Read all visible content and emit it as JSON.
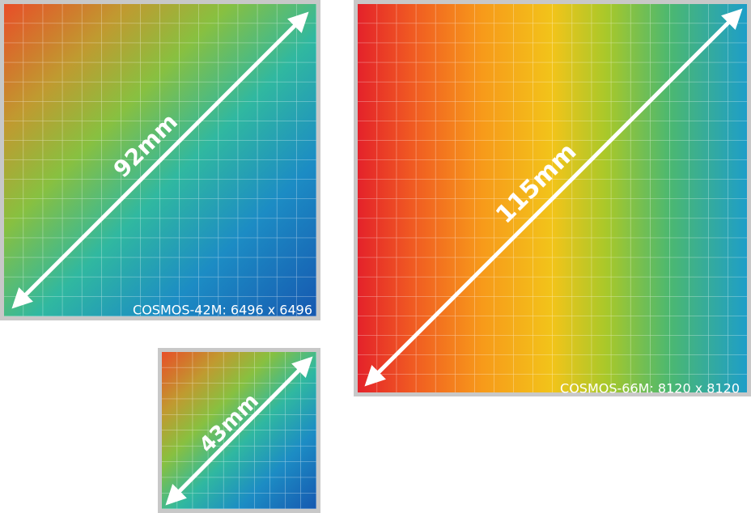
{
  "sensors": [
    {
      "diagonal": "92mm",
      "label": "COSMOS-42M: 6496 x 6496"
    },
    {
      "diagonal": "115mm",
      "label": "COSMOS-66M: 8120 x 8120"
    },
    {
      "diagonal": "43mm"
    }
  ]
}
